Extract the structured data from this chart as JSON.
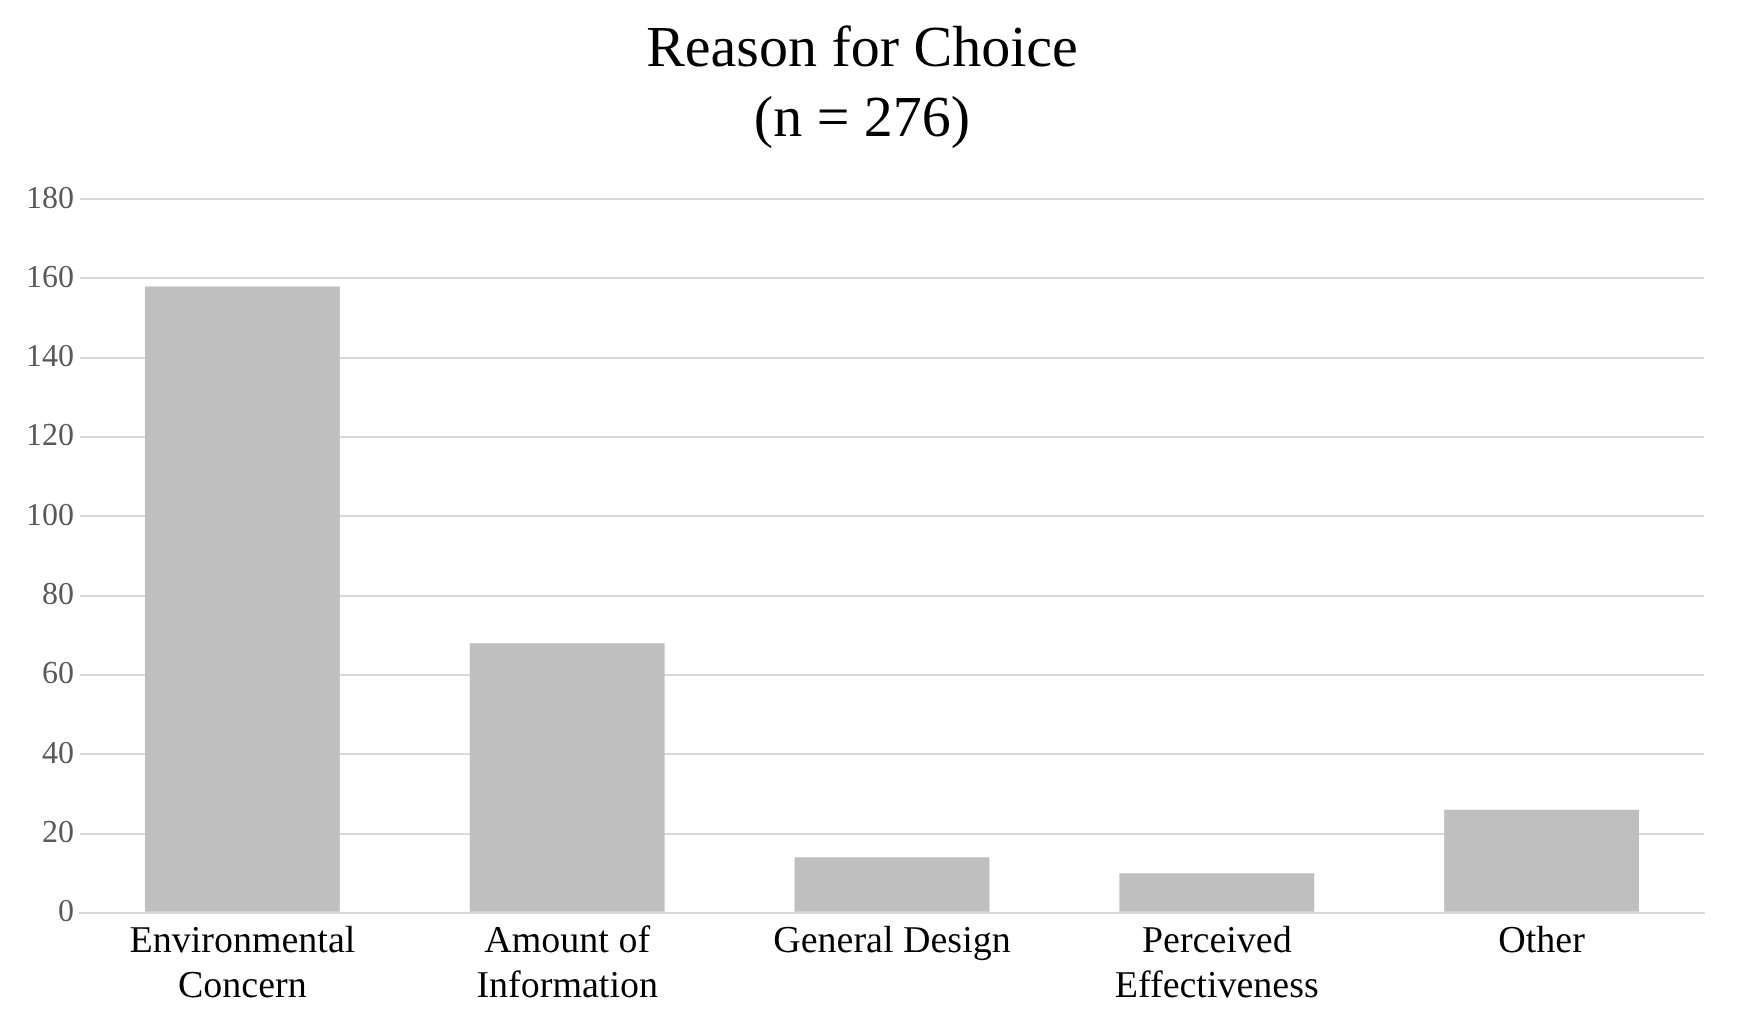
{
  "chart_data": {
    "type": "bar",
    "title": "Reason for Choice",
    "subtitle": "(n = 276)",
    "categories": [
      "Environmental Concern",
      "Amount of Information",
      "General Design",
      "Perceived Effectiveness",
      "Other"
    ],
    "values": [
      158,
      68,
      14,
      10,
      26
    ],
    "color": "#bfbfbf",
    "ylim": [
      0,
      180
    ],
    "yticks": [
      0,
      20,
      40,
      60,
      80,
      100,
      120,
      140,
      160,
      180
    ],
    "grid": "y",
    "legend": false
  }
}
